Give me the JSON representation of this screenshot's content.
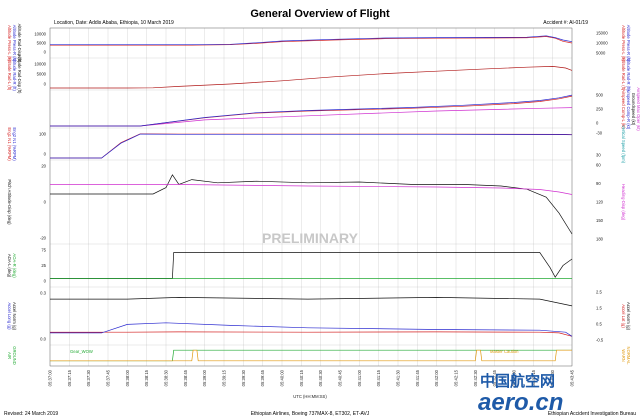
{
  "header": {
    "title": "General Overview of Flight",
    "location": "Location, Date: Addis Ababa, Ethiopia, 10 March 2019",
    "accident": "Accident #: AI-01/19"
  },
  "footer": {
    "revised": "Revised: 24 March 2019",
    "airline": "Ethiopian Airlines, Boeing 737MAX-8, ET302, ET-AVJ",
    "bureau": "Ethiopian Accident Investigation Bureau",
    "logo_cn": "中国航空网",
    "logo_en": "aero.cn"
  },
  "watermark": "PRELIMINARY",
  "colors": {
    "red": "#d42020",
    "blue": "#2b2bd0",
    "magenta": "#d030d0",
    "teal": "#20a0a8",
    "black": "#111111",
    "green": "#22aa33",
    "orange": "#e09a10",
    "darkred": "#b01818"
  },
  "chart_data": {
    "type": "line",
    "xlabel": "UTC (HH:MM:SS)",
    "x_ticks": [
      "05:37:00",
      "05:37:15",
      "05:37:30",
      "05:37:45",
      "05:38:00",
      "05:38:15",
      "05:38:30",
      "05:38:45",
      "05:39:00",
      "05:39:15",
      "05:39:30",
      "05:39:45",
      "05:40:00",
      "05:40:15",
      "05:40:30",
      "05:40:45",
      "05:41:00",
      "05:41:15",
      "05:41:30",
      "05:41:45",
      "05:42:00",
      "05:42:15",
      "05:42:30",
      "05:42:45",
      "05:43:00",
      "05:43:15",
      "05:43:30",
      "05:43:45"
    ],
    "panels": [
      {
        "left_labels": [
          {
            "text": "Altitude Press-L (ft)",
            "color": "#d42020"
          },
          {
            "text": "Altitude Press-R (ft)",
            "color": "#2b2bd0"
          },
          {
            "text": "Altitude Rad-Disp (ft)",
            "color": "#111111"
          }
        ],
        "left_ticks": [
          "10000",
          "5000",
          "0"
        ],
        "right_labels": [
          {
            "text": "Altitude Press-L (ft)",
            "color": "#d42020"
          },
          {
            "text": "Altitude Press-R (ft)",
            "color": "#2b2bd0"
          }
        ],
        "right_ticks": [
          "15000",
          "10000",
          "5000"
        ],
        "series": [
          {
            "name": "Altitude Press-L",
            "color": "#d42020",
            "t": [
              0,
              60,
              110,
              140,
              160,
              180,
              220,
              260,
              300,
              340,
              370,
              385,
              392,
              398,
              405
            ],
            "y": [
              7500,
              7500,
              7500,
              7600,
              7900,
              8300,
              8700,
              9000,
              9100,
              9150,
              9200,
              9500,
              9100,
              8400,
              8000
            ]
          },
          {
            "name": "Altitude Press-R",
            "color": "#2b2bd0",
            "t": [
              0,
              60,
              110,
              140,
              160,
              180,
              220,
              260,
              300,
              340,
              370,
              385,
              392,
              398,
              405
            ],
            "y": [
              7600,
              7600,
              7600,
              7700,
              8050,
              8450,
              8850,
              9150,
              9250,
              9300,
              9350,
              9650,
              9250,
              8700,
              8300
            ]
          }
        ]
      },
      {
        "left_labels": [
          {
            "text": "Altitude Rad-L (ft)",
            "color": "#d42020"
          },
          {
            "text": "Altitude Rad-R (ft)",
            "color": "#2b2bd0"
          },
          {
            "text": "Altitude Rad-Disp (ft)",
            "color": "#111111"
          }
        ],
        "left_ticks": [
          "10000",
          "5000",
          "0"
        ],
        "right_labels": [
          {
            "text": "Altitude Rad-L (ft)",
            "color": "#d42020"
          },
          {
            "text": "Altitude Rad-R (ft)",
            "color": "#2b2bd0"
          }
        ],
        "right_ticks": [],
        "series": [
          {
            "name": "Altitude Rad",
            "color": "#b01818",
            "t": [
              0,
              60,
              80,
              100,
              140,
              180,
              220,
              260,
              300,
              340,
              370,
              390,
              400,
              405
            ],
            "y": [
              0,
              0,
              30,
              200,
              500,
              900,
              1400,
              1800,
              2100,
              2400,
              2600,
              2700,
              2500,
              2200
            ]
          }
        ]
      },
      {
        "left_labels": [],
        "left_ticks": [],
        "right_labels": [
          {
            "text": "Airspeed Comp-L (kt)",
            "color": "#d42020"
          },
          {
            "text": "Airspeed Comp-R (kt)",
            "color": "#2b2bd0"
          },
          {
            "text": "Groundspeed (kt)",
            "color": "#111111"
          },
          {
            "text": "Airspeed Max Oper (kt)",
            "color": "#d030d0"
          }
        ],
        "right_ticks": [
          "500",
          "250",
          "0"
        ],
        "series": [
          {
            "name": "Airspeed Max Oper",
            "color": "#d030d0",
            "t": [
              0,
              70,
              120,
              200,
              300,
              380,
              405
            ],
            "y": [
              0,
              0,
              90,
              150,
              220,
              260,
              270
            ]
          },
          {
            "name": "Airspeed Comp-L",
            "color": "#d42020",
            "t": [
              0,
              70,
              120,
              160,
              200,
              240,
              280,
              320,
              360,
              380,
              395,
              405
            ],
            "y": [
              0,
              0,
              120,
              190,
              220,
              240,
              260,
              290,
              330,
              360,
              400,
              440
            ]
          },
          {
            "name": "Airspeed Comp-R",
            "color": "#2b2bd0",
            "t": [
              0,
              70,
              120,
              160,
              200,
              240,
              280,
              320,
              360,
              380,
              395,
              405
            ],
            "y": [
              0,
              0,
              125,
              195,
              228,
              250,
              272,
              305,
              345,
              375,
              415,
              455
            ]
          }
        ]
      },
      {
        "left_labels": [
          {
            "text": "Eng1 N1 (%RPM)",
            "color": "#d42020"
          },
          {
            "text": "Eng2 N1 (%RPM)",
            "color": "#2b2bd0"
          }
        ],
        "left_ticks": [
          "100",
          "0"
        ],
        "right_labels": [
          {
            "text": "Vertical Speed (fpm)",
            "color": "#20a0a8"
          }
        ],
        "right_ticks": [
          "-30",
          "30"
        ],
        "series": [
          {
            "name": "Eng1 N1",
            "color": "#d42020",
            "t": [
              0,
              40,
              55,
              70,
              100,
              200,
              300,
              400,
              405
            ],
            "y": [
              0,
              0,
              60,
              95,
              94,
              94,
              94,
              93,
              92
            ]
          },
          {
            "name": "Eng2 N1",
            "color": "#2b2bd0",
            "t": [
              0,
              40,
              55,
              70,
              100,
              200,
              300,
              400,
              405
            ],
            "y": [
              0,
              0,
              58,
              94,
              93,
              93,
              93,
              92,
              91
            ]
          }
        ]
      },
      {
        "left_labels": [
          {
            "text": "Pitch Attitude-Disp (deg)",
            "color": "#111111"
          }
        ],
        "left_ticks": [
          "20",
          "0",
          "-20"
        ],
        "right_labels": [
          {
            "text": "Heading-Disp (deg)",
            "color": "#d030d0"
          }
        ],
        "right_ticks": [
          "60",
          "90",
          "120",
          "150",
          "180"
        ],
        "series": [
          {
            "name": "Pitch Attitude-Disp",
            "color": "#111111",
            "t": [
              0,
              60,
              80,
              90,
              95,
              100,
              110,
              130,
              160,
              200,
              240,
              280,
              320,
              350,
              370,
              385,
              395,
              405
            ],
            "y": [
              0,
              0,
              0,
              4,
              12,
              6,
              9,
              7,
              8,
              7,
              7.5,
              6,
              6,
              5,
              3,
              -2,
              -12,
              -25
            ]
          },
          {
            "name": "Heading-Disp",
            "color": "#d030d0",
            "t": [
              0,
              100,
              200,
              300,
              350,
              380,
              395,
              405
            ],
            "y": [
              155,
              155,
              152,
              150,
              148,
              145,
              140,
              135
            ]
          }
        ]
      },
      {
        "left_labels": [
          {
            "text": "AOA-L (deg)",
            "color": "#111111"
          },
          {
            "text": "AOA-R (deg)",
            "color": "#22aa33"
          }
        ],
        "left_ticks": [
          "75",
          "25",
          "0"
        ],
        "right_labels": [],
        "right_ticks": [],
        "series": [
          {
            "name": "AOA-L",
            "color": "#111111",
            "t": [
              0,
              95,
              96,
              380,
              388,
              392,
              398,
              405
            ],
            "y": [
              15,
              15,
              75,
              75,
              40,
              18,
              45,
              60
            ]
          },
          {
            "name": "AOA-R",
            "color": "#22aa33",
            "t": [
              0,
              405
            ],
            "y": [
              15,
              15
            ]
          }
        ]
      },
      {
        "left_labels": [
          {
            "text": "Accel Long (g)",
            "color": "#2b2bd0"
          },
          {
            "text": "Accel Norm (g)",
            "color": "#111111"
          }
        ],
        "left_ticks": [
          "0.3",
          "0.0"
        ],
        "right_labels": [
          {
            "text": "Accel Lat (g)",
            "color": "#d42020"
          },
          {
            "text": "Accel Norm (g)",
            "color": "#111111"
          }
        ],
        "right_ticks": [
          "2.5",
          "1.5",
          "0.5",
          "-0.5"
        ],
        "series": [
          {
            "name": "Accel Lat",
            "color": "#d42020",
            "t": [
              0,
              60,
              100,
              200,
              300,
              380,
              395,
              405
            ],
            "y": [
              0.02,
              0.02,
              0.03,
              0.02,
              0.03,
              0.02,
              0.0,
              -0.1
            ]
          },
          {
            "name": "Accel Long",
            "color": "#2b2bd0",
            "t": [
              0,
              40,
              60,
              90,
              140,
              200,
              300,
              380,
              400,
              405
            ],
            "y": [
              0.0,
              0.0,
              0.25,
              0.3,
              0.22,
              0.15,
              0.1,
              0.08,
              0.02,
              -0.1
            ]
          },
          {
            "name": "Accel Norm",
            "color": "#111111",
            "t": [
              0,
              60,
              100,
              200,
              300,
              380,
              405
            ],
            "y": [
              1.0,
              1.0,
              1.05,
              1.0,
              1.05,
              1.0,
              0.8
            ]
          }
        ]
      },
      {
        "left_labels": [
          {
            "text": "AIR",
            "color": "#22aa33"
          },
          {
            "text": "GROUND",
            "color": "#22aa33"
          }
        ],
        "left_ticks": [],
        "right_labels": [
          {
            "text": "WARN",
            "color": "#e09a10"
          },
          {
            "text": "NORMAL",
            "color": "#e09a10"
          }
        ],
        "right_ticks": [],
        "annotations": [
          {
            "text": "Gear_WOW",
            "color": "#22aa33"
          },
          {
            "text": "Master Caution",
            "color": "#e09a10"
          }
        ],
        "series": [
          {
            "name": "Gear_WOW",
            "color": "#22aa33",
            "t": [
              0,
              95,
              96,
              405
            ],
            "y": [
              0,
              0,
              1,
              1
            ]
          },
          {
            "name": "Master Caution",
            "color": "#e09a10",
            "t": [
              0,
              110,
              111,
              114,
              115,
              330,
              331,
              334,
              335,
              392,
              393,
              405
            ],
            "y": [
              0,
              0,
              1,
              1,
              0,
              0,
              1,
              1,
              0,
              0,
              1,
              1
            ]
          }
        ]
      }
    ]
  }
}
